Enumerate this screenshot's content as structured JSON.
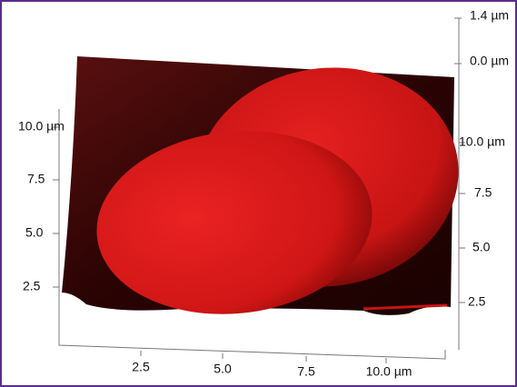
{
  "axes": {
    "z": [
      "1.4 µm",
      "0.0 µm"
    ],
    "left": [
      "10.0 µm",
      "7.5",
      "5.0",
      "2.5"
    ],
    "right": [
      "10.0 µm",
      "7.5",
      "5.0",
      "2.5"
    ],
    "bottom": [
      "2.5",
      "5.0",
      "7.5",
      "10.0 µm"
    ]
  }
}
